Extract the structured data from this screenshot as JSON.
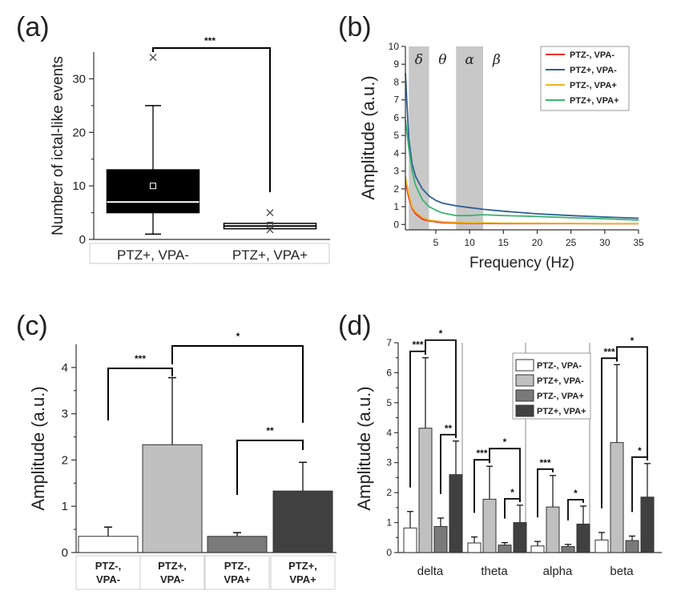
{
  "figure": {
    "panel_labels": [
      "(a)",
      "(b)",
      "(c)",
      "(d)"
    ]
  },
  "chart_data": [
    {
      "panel": "(a)",
      "type": "box",
      "ylabel": "Number of ictal-like events",
      "ylim": [
        0,
        35
      ],
      "yticks": [
        "0",
        "10",
        "20",
        "30"
      ],
      "categories": [
        "PTZ+, VPA-",
        "PTZ+, VPA+"
      ],
      "boxes": [
        {
          "category": "PTZ+, VPA-",
          "min": 1,
          "q1": 5,
          "median": 7,
          "q3": 13,
          "max": 25,
          "mean": 10,
          "outliers": [
            34
          ],
          "fill": "#000000"
        },
        {
          "category": "PTZ+, VPA+",
          "min": 2,
          "q1": 2,
          "median": 2.5,
          "q3": 3,
          "max": 3,
          "mean": 2.7,
          "outliers": [
            5,
            1.8
          ],
          "fill": "#ffffff"
        }
      ],
      "significance": [
        {
          "from": "PTZ+, VPA-",
          "to": "PTZ+, VPA+",
          "label": "***"
        }
      ]
    },
    {
      "panel": "(b)",
      "type": "line",
      "xlabel": "Frequency (Hz)",
      "ylabel": "Amplitude (a.u.)",
      "xlim": [
        0.5,
        35
      ],
      "ylim": [
        -0.3,
        10
      ],
      "xticks": [
        "5",
        "10",
        "15",
        "20",
        "25",
        "30",
        "35"
      ],
      "yticks": [
        "0",
        "1",
        "2",
        "3",
        "4",
        "5",
        "6",
        "7",
        "8",
        "9",
        "10"
      ],
      "bands": [
        {
          "symbol": "δ",
          "range": [
            1,
            4
          ],
          "shaded": true
        },
        {
          "symbol": "θ",
          "range": [
            4,
            8
          ],
          "shaded": false
        },
        {
          "symbol": "α",
          "range": [
            8,
            12
          ],
          "shaded": true
        },
        {
          "symbol": "β",
          "range": [
            12,
            35
          ],
          "shaded": false
        }
      ],
      "legend": "top-right",
      "series": [
        {
          "name": "PTZ-, VPA-",
          "color": "#e8332a",
          "x": [
            0.5,
            1,
            1.5,
            2,
            3,
            4,
            5,
            6,
            8,
            10,
            12,
            15,
            20,
            25,
            30,
            35
          ],
          "y": [
            2.4,
            1.5,
            0.9,
            0.6,
            0.3,
            0.2,
            0.15,
            0.1,
            0.08,
            0.07,
            0.06,
            0.05,
            0.05,
            0.05,
            0.04,
            0.04
          ]
        },
        {
          "name": "PTZ+, VPA-",
          "color": "#2e5f94",
          "x": [
            0.5,
            1,
            1.5,
            2,
            3,
            4,
            5,
            6,
            8,
            10,
            12,
            15,
            20,
            25,
            30,
            35
          ],
          "y": [
            8.5,
            4.8,
            3.4,
            2.7,
            2.0,
            1.6,
            1.35,
            1.2,
            1.05,
            0.95,
            0.85,
            0.75,
            0.6,
            0.5,
            0.42,
            0.35
          ]
        },
        {
          "name": "PTZ-, VPA+",
          "color": "#f0b323",
          "x": [
            0.5,
            1,
            1.5,
            2,
            3,
            4,
            5,
            6,
            8,
            10,
            12,
            15,
            20,
            25,
            30,
            35
          ],
          "y": [
            2.7,
            1.7,
            1.0,
            0.7,
            0.4,
            0.25,
            0.2,
            0.15,
            0.12,
            0.1,
            0.1,
            0.08,
            0.07,
            0.06,
            0.05,
            0.05
          ]
        },
        {
          "name": "PTZ+, VPA+",
          "color": "#3cb371",
          "x": [
            0.5,
            1,
            1.5,
            2,
            3,
            4,
            5,
            6,
            8,
            10,
            12,
            15,
            20,
            25,
            30,
            35
          ],
          "y": [
            5.9,
            4.3,
            3.0,
            2.2,
            1.4,
            1.0,
            0.8,
            0.65,
            0.5,
            0.5,
            0.55,
            0.5,
            0.45,
            0.38,
            0.32,
            0.25
          ]
        }
      ]
    },
    {
      "panel": "(c)",
      "type": "bar",
      "ylabel": "Amplitude (a.u.)",
      "ylim": [
        0,
        4.5
      ],
      "yticks": [
        "0",
        "1",
        "2",
        "3",
        "4"
      ],
      "categories": [
        "PTZ-,\nVPA-",
        "PTZ+,\nVPA-",
        "PTZ-,\nVPA+",
        "PTZ+,\nVPA+"
      ],
      "category_lines": [
        [
          "PTZ-,",
          "VPA-"
        ],
        [
          "PTZ+,",
          "VPA-"
        ],
        [
          "PTZ-,",
          "VPA+"
        ],
        [
          "PTZ+,",
          "VPA+"
        ]
      ],
      "values": [
        0.35,
        2.33,
        0.35,
        1.33
      ],
      "errors": [
        0.2,
        1.45,
        0.08,
        0.62
      ],
      "colors": [
        "#ffffff",
        "#c0c0c0",
        "#7a7a7a",
        "#404040"
      ],
      "significance": [
        {
          "from": 0,
          "to": 1,
          "label": "***"
        },
        {
          "from": 1,
          "to": 3,
          "label": "*"
        },
        {
          "from": 2,
          "to": 3,
          "label": "**"
        }
      ]
    },
    {
      "panel": "(d)",
      "type": "bar",
      "ylabel": "Amplitude (a.u.)",
      "ylim": [
        0,
        7
      ],
      "yticks": [
        "0",
        "1",
        "2",
        "3",
        "4",
        "5",
        "6",
        "7"
      ],
      "categories": [
        "delta",
        "theta",
        "alpha",
        "beta"
      ],
      "legend": "top-right",
      "series": [
        {
          "name": "PTZ-, VPA-",
          "color": "#ffffff",
          "values": [
            0.82,
            0.32,
            0.22,
            0.42
          ],
          "errors": [
            0.55,
            0.2,
            0.15,
            0.25
          ]
        },
        {
          "name": "PTZ+, VPA-",
          "color": "#c0c0c0",
          "values": [
            4.15,
            1.78,
            1.52,
            3.67
          ],
          "errors": [
            2.35,
            1.1,
            1.05,
            2.6
          ]
        },
        {
          "name": "PTZ-, VPA+",
          "color": "#7a7a7a",
          "values": [
            0.87,
            0.25,
            0.2,
            0.4
          ],
          "errors": [
            0.28,
            0.08,
            0.07,
            0.15
          ]
        },
        {
          "name": "PTZ+, VPA+",
          "color": "#404040",
          "values": [
            2.6,
            1.0,
            0.95,
            1.85
          ],
          "errors": [
            1.12,
            0.58,
            0.6,
            1.12
          ]
        }
      ],
      "significance": [
        {
          "group": "delta",
          "from": 0,
          "to": 1,
          "label": "***"
        },
        {
          "group": "delta",
          "from": 1,
          "to": 3,
          "label": "*"
        },
        {
          "group": "delta",
          "from": 2,
          "to": 3,
          "label": "**"
        },
        {
          "group": "theta",
          "from": 0,
          "to": 1,
          "label": "***"
        },
        {
          "group": "theta",
          "from": 1,
          "to": 3,
          "label": "*"
        },
        {
          "group": "theta",
          "from": 2,
          "to": 3,
          "label": "*"
        },
        {
          "group": "alpha",
          "from": 0,
          "to": 1,
          "label": "***"
        },
        {
          "group": "alpha",
          "from": 2,
          "to": 3,
          "label": "*"
        },
        {
          "group": "beta",
          "from": 0,
          "to": 1,
          "label": "***"
        },
        {
          "group": "beta",
          "from": 1,
          "to": 3,
          "label": "*"
        },
        {
          "group": "beta",
          "from": 2,
          "to": 3,
          "label": "*"
        }
      ]
    }
  ]
}
